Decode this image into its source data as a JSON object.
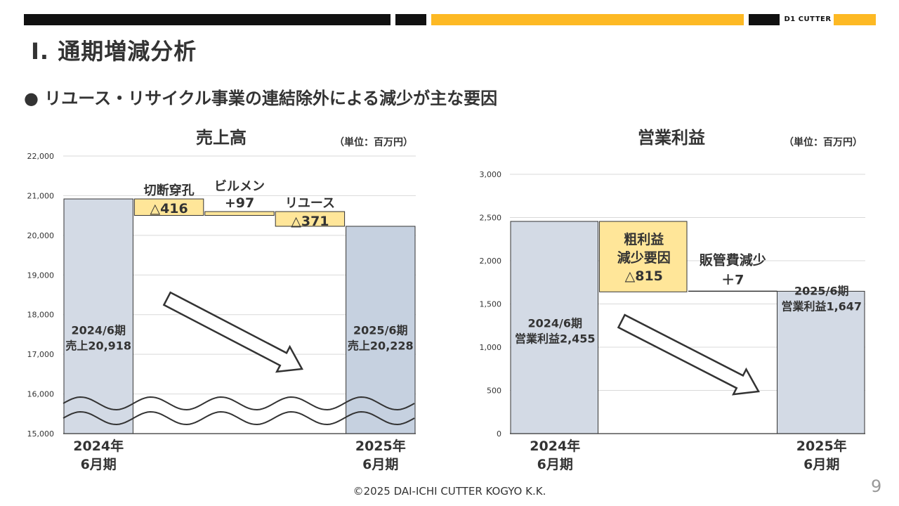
{
  "header": {
    "brand": "D1 CUTTER",
    "title": "Ⅰ. 通期増減分析",
    "bullet": "● リユース・リサイクル事業の連結除外による減少が主な要因",
    "accent_color": "#FDB924"
  },
  "footer": {
    "copyright": "©2025 DAI-ICHI CUTTER KOGYO K.K.",
    "page": "9"
  },
  "chart_data": [
    {
      "type": "bar",
      "subtype": "waterfall",
      "title": "売上高",
      "unit": "（単位：百万円）",
      "ylim": [
        15000,
        22000
      ],
      "yticks": [
        15000,
        16000,
        17000,
        18000,
        19000,
        20000,
        21000,
        22000
      ],
      "ytick_labels": [
        "15,000",
        "16,000",
        "17,000",
        "18,000",
        "19,000",
        "20,000",
        "21,000",
        "22,000"
      ],
      "axis_break": true,
      "grid": true,
      "categories": [
        "2024年\n6月期",
        "切断穿孔",
        "ビルメン",
        "リユース",
        "2025年\n6月期"
      ],
      "steps": [
        {
          "kind": "total",
          "value": 20918,
          "label": "2024/6期\n売上20,918",
          "axis_label": "2024年\n6月期"
        },
        {
          "kind": "delta",
          "value": -416,
          "name": "切断穿孔",
          "label": "△416"
        },
        {
          "kind": "delta",
          "value": 97,
          "name": "ビルメン",
          "label": "+97"
        },
        {
          "kind": "delta",
          "value": -371,
          "name": "リユース",
          "label": "△371"
        },
        {
          "kind": "total",
          "value": 20228,
          "label": "2025/6期\n売上20,228",
          "axis_label": "2025年\n6月期"
        }
      ]
    },
    {
      "type": "bar",
      "subtype": "waterfall",
      "title": "営業利益",
      "unit": "（単位：百万円）",
      "ylim": [
        0,
        3000
      ],
      "yticks": [
        0,
        500,
        1000,
        1500,
        2000,
        2500,
        3000
      ],
      "ytick_labels": [
        "0",
        "500",
        "1,000",
        "1,500",
        "2,000",
        "2,500",
        "3,000"
      ],
      "grid": true,
      "categories": [
        "2024年\n6月期",
        "粗利益減少要因",
        "販管費減少",
        "2025年\n6月期"
      ],
      "steps": [
        {
          "kind": "total",
          "value": 2455,
          "label": "2024/6期\n営業利益2,455",
          "axis_label": "2024年\n6月期"
        },
        {
          "kind": "delta",
          "value": -815,
          "name": "粗利益\n減少要因",
          "label": "△815"
        },
        {
          "kind": "delta",
          "value": 7,
          "name": "販管費減少",
          "label": "＋7"
        },
        {
          "kind": "total",
          "value": 1647,
          "label": "2025/6期\n営業利益1,647",
          "axis_label": "2025年\n6月期"
        }
      ]
    }
  ],
  "colors": {
    "total_bar": "#D3DAE5",
    "total_bar_2025": "#C6D1E0",
    "delta_bar": "#FFE699",
    "bar_stroke": "#333333",
    "grid": "#D9D9D9",
    "text": "#333333"
  }
}
